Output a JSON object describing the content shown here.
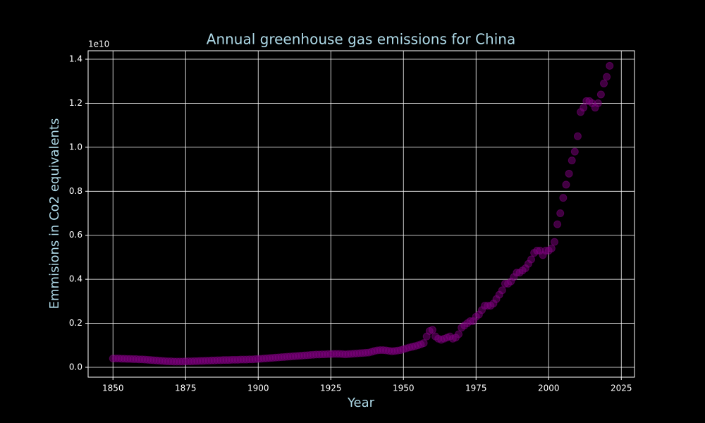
{
  "chart_data": {
    "type": "scatter",
    "title": "Annual greenhouse gas emissions for China",
    "x_label": "Year",
    "y_label": "Emmisions in Co2 equivalents",
    "y_offset_label": "1e10",
    "color": "#800080",
    "opacity": 0.5,
    "grid": true,
    "xlim": [
      1841.45,
      2029.55
    ],
    "ylim": [
      -0.0449,
      1.4385
    ],
    "xticks": [
      1850,
      1875,
      1900,
      1925,
      1950,
      1975,
      2000,
      2025
    ],
    "yticks": [
      {
        "value": 0,
        "label": "0.0"
      },
      0.2,
      0.4,
      0.6,
      0.8,
      {
        "value": 1,
        "label": "1.0"
      },
      1.2,
      1.4
    ],
    "x": [
      1850,
      1851,
      1852,
      1853,
      1854,
      1855,
      1856,
      1857,
      1858,
      1859,
      1860,
      1861,
      1862,
      1863,
      1864,
      1865,
      1866,
      1867,
      1868,
      1869,
      1870,
      1871,
      1872,
      1873,
      1874,
      1875,
      1876,
      1877,
      1878,
      1879,
      1880,
      1881,
      1882,
      1883,
      1884,
      1885,
      1886,
      1887,
      1888,
      1889,
      1890,
      1891,
      1892,
      1893,
      1894,
      1895,
      1896,
      1897,
      1898,
      1899,
      1900,
      1901,
      1902,
      1903,
      1904,
      1905,
      1906,
      1907,
      1908,
      1909,
      1910,
      1911,
      1912,
      1913,
      1914,
      1915,
      1916,
      1917,
      1918,
      1919,
      1920,
      1921,
      1922,
      1923,
      1924,
      1925,
      1926,
      1927,
      1928,
      1929,
      1930,
      1931,
      1932,
      1933,
      1934,
      1935,
      1936,
      1937,
      1938,
      1939,
      1940,
      1941,
      1942,
      1943,
      1944,
      1945,
      1946,
      1947,
      1948,
      1949,
      1950,
      1951,
      1952,
      1953,
      1954,
      1955,
      1956,
      1957,
      1958,
      1959,
      1960,
      1961,
      1962,
      1963,
      1964,
      1965,
      1966,
      1967,
      1968,
      1969,
      1970,
      1971,
      1972,
      1973,
      1974,
      1975,
      1976,
      1977,
      1978,
      1979,
      1980,
      1981,
      1982,
      1983,
      1984,
      1985,
      1986,
      1987,
      1988,
      1989,
      1990,
      1991,
      1992,
      1993,
      1994,
      1995,
      1996,
      1997,
      1998,
      1999,
      2000,
      2001,
      2002,
      2003,
      2004,
      2005,
      2006,
      2007,
      2008,
      2009,
      2010,
      2011,
      2012,
      2013,
      2014,
      2015,
      2016,
      2017,
      2018,
      2019,
      2020,
      2021
    ],
    "values": [
      0.04,
      0.04,
      0.04,
      0.039,
      0.039,
      0.038,
      0.038,
      0.037,
      0.037,
      0.036,
      0.036,
      0.035,
      0.034,
      0.033,
      0.032,
      0.031,
      0.03,
      0.029,
      0.028,
      0.027,
      0.027,
      0.026,
      0.026,
      0.026,
      0.026,
      0.027,
      0.027,
      0.027,
      0.028,
      0.028,
      0.029,
      0.029,
      0.03,
      0.03,
      0.031,
      0.031,
      0.032,
      0.032,
      0.033,
      0.033,
      0.033,
      0.034,
      0.034,
      0.034,
      0.035,
      0.035,
      0.035,
      0.036,
      0.036,
      0.037,
      0.038,
      0.039,
      0.04,
      0.041,
      0.042,
      0.043,
      0.044,
      0.045,
      0.046,
      0.047,
      0.048,
      0.049,
      0.05,
      0.051,
      0.052,
      0.053,
      0.054,
      0.055,
      0.056,
      0.057,
      0.058,
      0.058,
      0.059,
      0.059,
      0.06,
      0.06,
      0.061,
      0.061,
      0.061,
      0.06,
      0.059,
      0.06,
      0.061,
      0.062,
      0.063,
      0.064,
      0.065,
      0.066,
      0.067,
      0.07,
      0.074,
      0.077,
      0.078,
      0.078,
      0.077,
      0.075,
      0.073,
      0.074,
      0.076,
      0.078,
      0.082,
      0.086,
      0.09,
      0.093,
      0.096,
      0.1,
      0.104,
      0.11,
      0.14,
      0.165,
      0.17,
      0.14,
      0.13,
      0.125,
      0.13,
      0.135,
      0.14,
      0.13,
      0.135,
      0.15,
      0.18,
      0.19,
      0.2,
      0.21,
      0.21,
      0.23,
      0.24,
      0.26,
      0.28,
      0.28,
      0.28,
      0.29,
      0.31,
      0.33,
      0.35,
      0.38,
      0.38,
      0.39,
      0.41,
      0.43,
      0.43,
      0.44,
      0.45,
      0.47,
      0.49,
      0.52,
      0.53,
      0.53,
      0.51,
      0.53,
      0.53,
      0.54,
      0.57,
      0.65,
      0.7,
      0.77,
      0.83,
      0.88,
      0.94,
      0.98,
      1.05,
      1.16,
      1.18,
      1.21,
      1.21,
      1.2,
      1.18,
      1.2,
      1.24,
      1.29,
      1.32,
      1.37
    ]
  }
}
